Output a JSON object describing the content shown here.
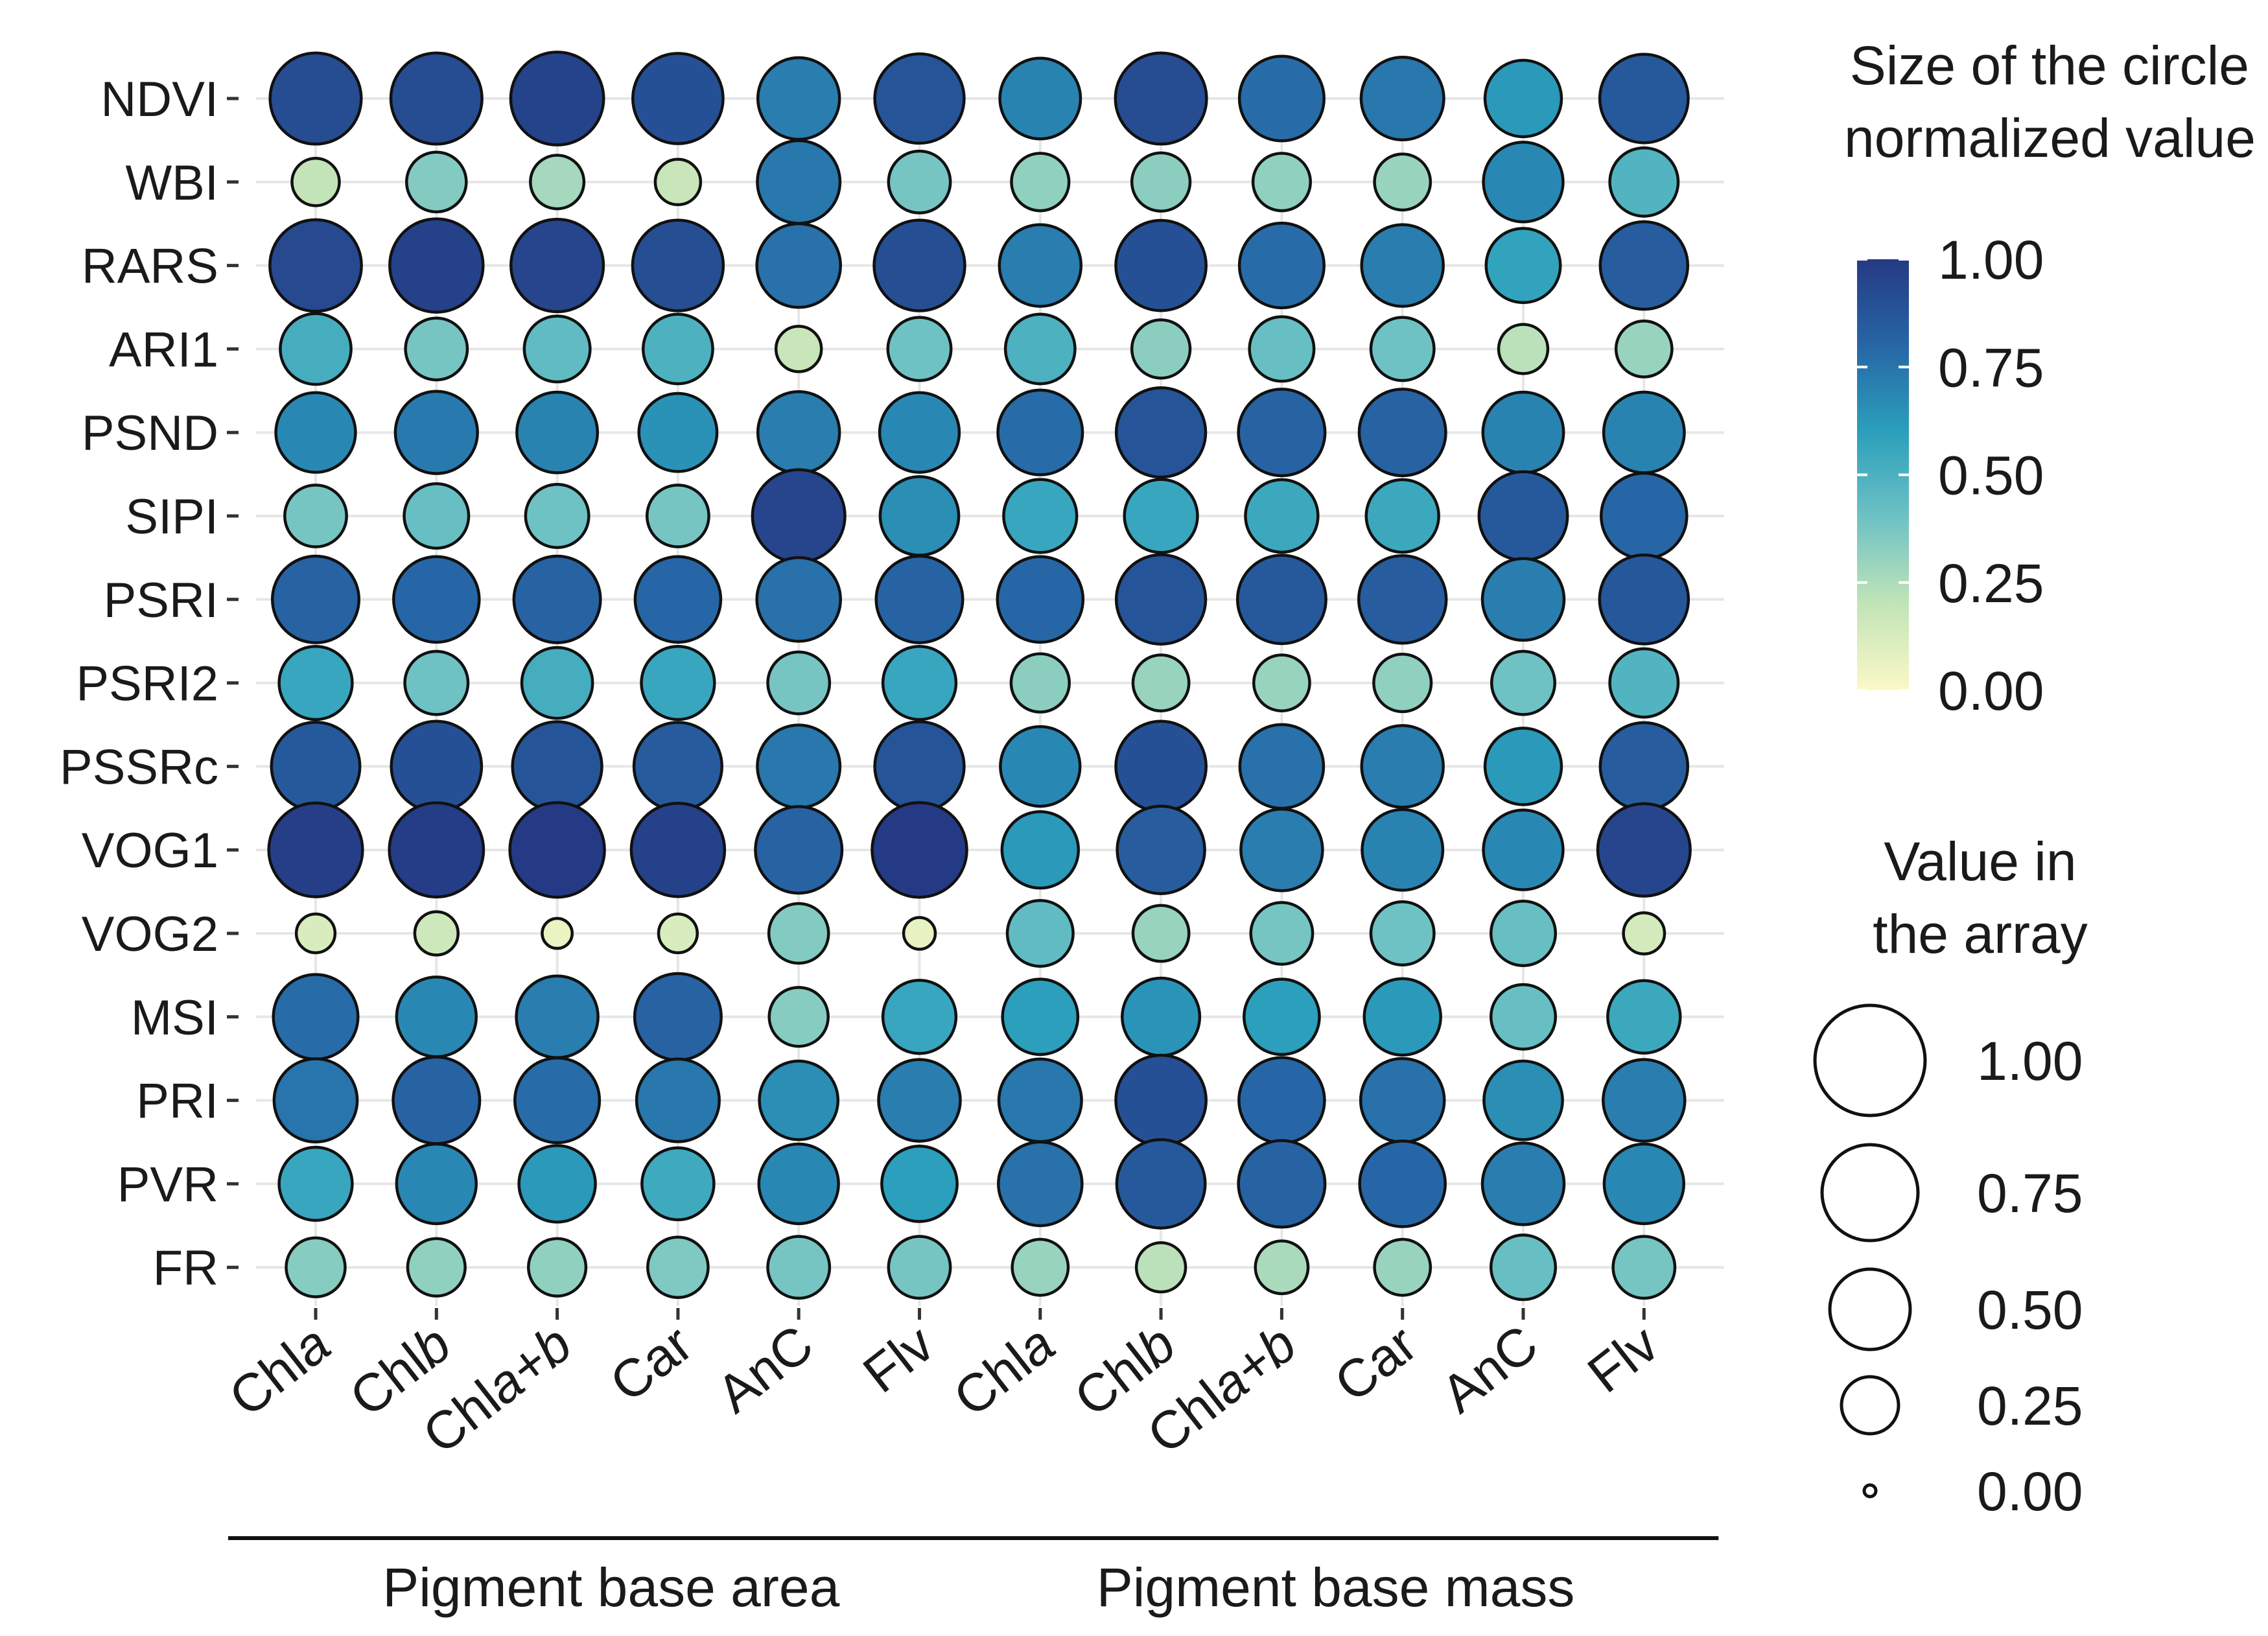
{
  "chart_data": {
    "type": "bubble-heatmap",
    "title": "",
    "rows": [
      "NDVI",
      "WBI",
      "RARS",
      "ARI1",
      "PSND",
      "SIPI",
      "PSRI",
      "PSRI2",
      "PSSRc",
      "VOG1",
      "VOG2",
      "MSI",
      "PRI",
      "PVR",
      "FR"
    ],
    "columns": [
      {
        "id": "a_chla",
        "prefix": "Chl",
        "italic": "a",
        "group": "Pigment base area"
      },
      {
        "id": "a_chlb",
        "prefix": "Chl",
        "italic": "b",
        "group": "Pigment base area"
      },
      {
        "id": "a_chlab",
        "prefix": "Chl",
        "italic": "a+b",
        "group": "Pigment base area"
      },
      {
        "id": "a_car",
        "prefix": "Car",
        "italic": "",
        "group": "Pigment base area"
      },
      {
        "id": "a_anc",
        "prefix": "AnC",
        "italic": "",
        "group": "Pigment base area"
      },
      {
        "id": "a_flv",
        "prefix": "Flv",
        "italic": "",
        "group": "Pigment base area"
      },
      {
        "id": "m_chla",
        "prefix": "Chl",
        "italic": "a",
        "group": "Pigment base mass"
      },
      {
        "id": "m_chlb",
        "prefix": "Chl",
        "italic": "b",
        "group": "Pigment base mass"
      },
      {
        "id": "m_chlab",
        "prefix": "Chl",
        "italic": "a+b",
        "group": "Pigment base mass"
      },
      {
        "id": "m_car",
        "prefix": "Car",
        "italic": "",
        "group": "Pigment base mass"
      },
      {
        "id": "m_anc",
        "prefix": "AnC",
        "italic": "",
        "group": "Pigment base mass"
      },
      {
        "id": "m_flv",
        "prefix": "Flv",
        "italic": "",
        "group": "Pigment base mass"
      }
    ],
    "groups": [
      {
        "label": "Pigment base area",
        "columns": [
          0,
          5
        ]
      },
      {
        "label": "Pigment base mass",
        "columns": [
          6,
          11
        ]
      }
    ],
    "values": [
      [
        0.92,
        0.92,
        0.96,
        0.9,
        0.72,
        0.88,
        0.7,
        0.92,
        0.78,
        0.74,
        0.62,
        0.86
      ],
      [
        0.2,
        0.35,
        0.27,
        0.18,
        0.74,
        0.38,
        0.32,
        0.33,
        0.32,
        0.3,
        0.68,
        0.48
      ],
      [
        0.93,
        0.97,
        0.95,
        0.91,
        0.76,
        0.91,
        0.72,
        0.9,
        0.78,
        0.72,
        0.58,
        0.84
      ],
      [
        0.52,
        0.38,
        0.44,
        0.5,
        0.18,
        0.4,
        0.5,
        0.33,
        0.42,
        0.4,
        0.22,
        0.3
      ],
      [
        0.68,
        0.73,
        0.7,
        0.65,
        0.72,
        0.68,
        0.78,
        0.88,
        0.82,
        0.82,
        0.7,
        0.7
      ],
      [
        0.38,
        0.42,
        0.4,
        0.38,
        0.95,
        0.66,
        0.56,
        0.56,
        0.55,
        0.55,
        0.86,
        0.8
      ],
      [
        0.82,
        0.8,
        0.82,
        0.8,
        0.76,
        0.82,
        0.8,
        0.88,
        0.86,
        0.84,
        0.72,
        0.87
      ],
      [
        0.56,
        0.4,
        0.52,
        0.56,
        0.38,
        0.56,
        0.33,
        0.3,
        0.3,
        0.32,
        0.4,
        0.48
      ],
      [
        0.86,
        0.9,
        0.88,
        0.85,
        0.74,
        0.88,
        0.68,
        0.9,
        0.76,
        0.72,
        0.62,
        0.84
      ],
      [
        0.98,
        0.99,
        1.0,
        0.97,
        0.82,
        1.0,
        0.62,
        0.84,
        0.72,
        0.7,
        0.68,
        0.95
      ],
      [
        0.12,
        0.16,
        0.06,
        0.12,
        0.35,
        0.07,
        0.44,
        0.3,
        0.38,
        0.4,
        0.42,
        0.14
      ],
      [
        0.78,
        0.68,
        0.72,
        0.82,
        0.34,
        0.56,
        0.6,
        0.64,
        0.6,
        0.62,
        0.42,
        0.55
      ],
      [
        0.75,
        0.82,
        0.78,
        0.74,
        0.66,
        0.72,
        0.74,
        0.9,
        0.8,
        0.76,
        0.66,
        0.72
      ],
      [
        0.56,
        0.68,
        0.62,
        0.54,
        0.68,
        0.6,
        0.76,
        0.86,
        0.82,
        0.8,
        0.72,
        0.68
      ],
      [
        0.34,
        0.32,
        0.32,
        0.36,
        0.38,
        0.38,
        0.3,
        0.22,
        0.26,
        0.3,
        0.42,
        0.38
      ]
    ],
    "color_legend": {
      "title_line1": "Size of the circle",
      "title_line2": "normalized value",
      "ticks": [
        "1.00",
        "0.75",
        "0.50",
        "0.25",
        "0.00"
      ],
      "tick_values": [
        1.0,
        0.75,
        0.5,
        0.25,
        0.0
      ],
      "colors": [
        "#fbf9c6",
        "#c2e4b8",
        "#6ec2c4",
        "#2b9fbc",
        "#2766a6",
        "#253a84"
      ]
    },
    "size_legend": {
      "title_line1": "Value in",
      "title_line2": "the array",
      "ticks": [
        "1.00",
        "0.75",
        "0.50",
        "0.25",
        "0.00"
      ],
      "tick_values": [
        1.0,
        0.75,
        0.5,
        0.25,
        0.0
      ]
    },
    "legend_position": "right"
  }
}
